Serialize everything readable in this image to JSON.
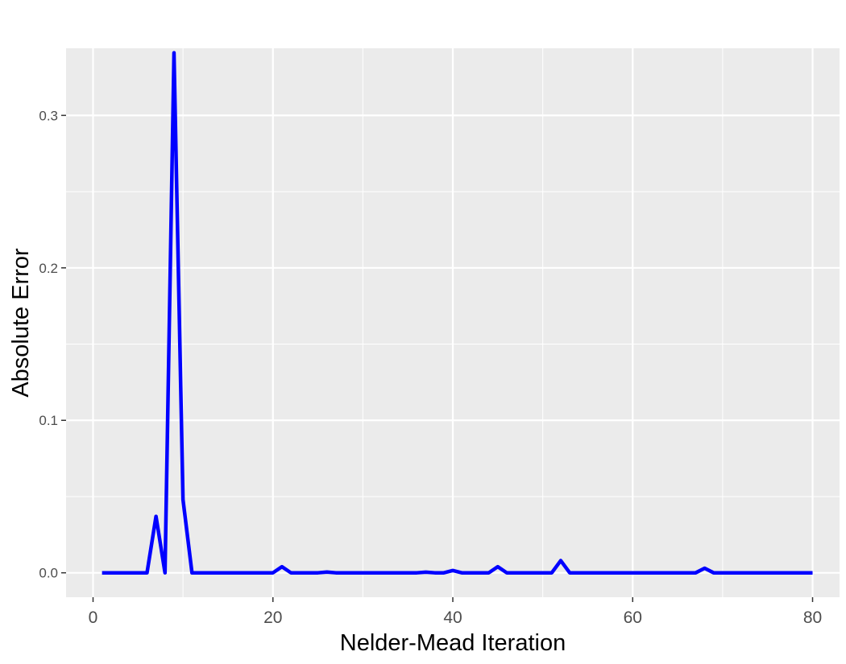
{
  "chart_data": {
    "type": "line",
    "title": "",
    "xlabel": "Nelder-Mead Iteration",
    "ylabel": "Absolute Error",
    "xlim": [
      -3,
      83
    ],
    "ylim": [
      -0.016,
      0.344
    ],
    "x_ticks": [
      0,
      20,
      40,
      60,
      80
    ],
    "x_tick_labels": [
      "0",
      "20",
      "40",
      "60",
      "80"
    ],
    "y_ticks": [
      0.0,
      0.1,
      0.2,
      0.3
    ],
    "y_tick_labels": [
      "0.0",
      "0.1",
      "0.2",
      "0.3"
    ],
    "grid": true,
    "colors": {
      "panel": "#ebebeb",
      "grid": "#ffffff",
      "line": "#0000ff"
    },
    "series": [
      {
        "x": [
          1,
          2,
          3,
          4,
          5,
          6,
          7,
          8,
          9,
          10,
          11,
          12,
          13,
          14,
          15,
          16,
          17,
          18,
          19,
          20,
          21,
          22,
          23,
          24,
          25,
          26,
          27,
          28,
          29,
          30,
          31,
          32,
          33,
          34,
          35,
          36,
          37,
          38,
          39,
          40,
          41,
          42,
          43,
          44,
          45,
          46,
          47,
          48,
          49,
          50,
          51,
          52,
          53,
          54,
          55,
          56,
          57,
          58,
          59,
          60,
          61,
          62,
          63,
          64,
          65,
          66,
          67,
          68,
          69,
          70,
          71,
          72,
          73,
          74,
          75,
          76,
          77,
          78,
          79,
          80
        ],
        "y": [
          0,
          0,
          0,
          0,
          0,
          0,
          0.037,
          0,
          0.341,
          0.048,
          0,
          0,
          0,
          0,
          0,
          0,
          0,
          0,
          0,
          0,
          0.004,
          0,
          0,
          0,
          0,
          0.0005,
          0,
          0,
          0,
          0,
          0,
          0,
          0,
          0,
          0,
          0,
          0.0004,
          0,
          0,
          0.0015,
          0,
          0,
          0,
          0,
          0.004,
          0,
          0,
          0,
          0,
          0,
          0,
          0.008,
          0,
          0,
          0,
          0,
          0,
          0,
          0,
          0,
          0,
          0,
          0,
          0,
          0,
          0,
          0,
          0.003,
          0,
          0,
          0,
          0,
          0,
          0,
          0,
          0,
          0,
          0,
          0,
          0
        ]
      }
    ]
  }
}
